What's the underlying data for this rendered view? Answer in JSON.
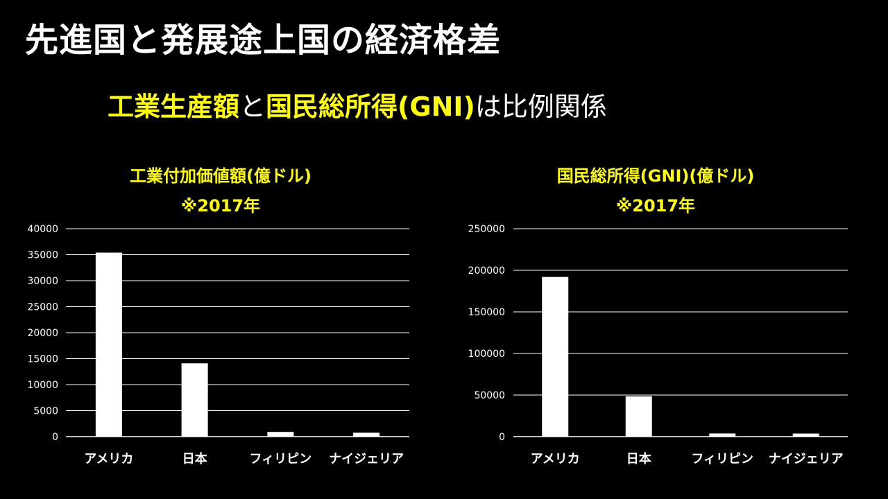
{
  "slide": {
    "title": "先進国と発展途上国の経済格差",
    "subtitle": {
      "part1": "工業生産額",
      "part2": "と",
      "part3": "国民総所得(GNI)",
      "part4": "は比例関係"
    }
  },
  "colors": {
    "background": "#000000",
    "accent": "#ffff00",
    "text": "#ffffff",
    "bar": "#ffffff",
    "grid": "#ffffff"
  },
  "chart_data": [
    {
      "type": "bar",
      "title": "工業付加価値額(億ドル)",
      "subtitle": "※2017年",
      "categories": [
        "アメリカ",
        "日本",
        "フィリピン",
        "ナイジェリア"
      ],
      "values": [
        35400,
        14100,
        900,
        750
      ],
      "yticks": [
        "0",
        "5000",
        "10000",
        "15000",
        "20000",
        "25000",
        "30000",
        "35000",
        "40000"
      ],
      "ylim": [
        0,
        40000
      ],
      "grid": true,
      "legend": "none"
    },
    {
      "type": "bar",
      "title": "国民総所得(GNI)(億ドル)",
      "subtitle": "※2017年",
      "categories": [
        "アメリカ",
        "日本",
        "フィリピン",
        "ナイジェリア"
      ],
      "values": [
        192000,
        48500,
        3800,
        3700
      ],
      "yticks": [
        "0",
        "50000",
        "100000",
        "150000",
        "200000",
        "250000"
      ],
      "ylim": [
        0,
        250000
      ],
      "grid": true,
      "legend": "none"
    }
  ]
}
